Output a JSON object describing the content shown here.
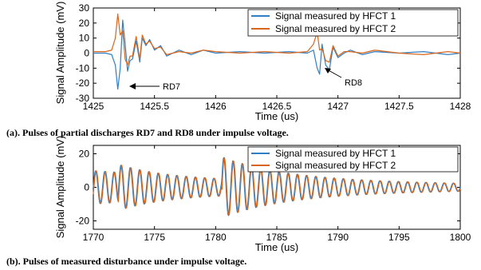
{
  "colors": {
    "series1": "#2f7fc4",
    "series2": "#d9651a"
  },
  "chart_data": [
    {
      "type": "line",
      "xlabel": "Time (us)",
      "ylabel": "Signal Amplitude (mV)",
      "xlim": [
        1425,
        1428
      ],
      "ylim": [
        -30,
        30
      ],
      "xticks": [
        "1425",
        "1425.5",
        "1426",
        "1426.5",
        "1427",
        "1427.5",
        "1428"
      ],
      "yticks": [
        "30",
        "20",
        "10",
        "0",
        "-10",
        "-20",
        "-30"
      ],
      "legend": [
        "Signal measured by HFCT 1",
        "Signal measured by HFCT 2"
      ],
      "legend_position": "top-right",
      "annotations": [
        {
          "text": "RD7",
          "x": 1425.22,
          "y": -24
        },
        {
          "text": "RD8",
          "x": 1426.85,
          "y": -14
        }
      ],
      "series": [
        {
          "name": "Signal measured by HFCT 1",
          "x": [
            1425,
            1425.1,
            1425.15,
            1425.18,
            1425.2,
            1425.22,
            1425.24,
            1425.26,
            1425.28,
            1425.3,
            1425.32,
            1425.35,
            1425.38,
            1425.4,
            1425.43,
            1425.46,
            1425.5,
            1425.55,
            1425.6,
            1425.7,
            1425.8,
            1425.9,
            1426,
            1426.2,
            1426.4,
            1426.6,
            1426.75,
            1426.8,
            1426.83,
            1426.85,
            1426.87,
            1426.9,
            1426.93,
            1426.96,
            1427,
            1427.05,
            1427.1,
            1427.2,
            1427.3,
            1427.5,
            1427.7,
            1427.9,
            1428
          ],
          "y": [
            0,
            0,
            -1,
            -8,
            -24,
            -10,
            22,
            6,
            -12,
            -5,
            -4,
            8,
            -6,
            10,
            5,
            9,
            2,
            5,
            -2,
            2,
            -1,
            2,
            0,
            1,
            0,
            1,
            0,
            2,
            -10,
            -14,
            6,
            -8,
            -11,
            4,
            -3,
            0,
            2,
            -1,
            1,
            0,
            1,
            -1,
            0
          ]
        },
        {
          "name": "Signal measured by HFCT 2",
          "x": [
            1425,
            1425.1,
            1425.15,
            1425.18,
            1425.2,
            1425.22,
            1425.24,
            1425.26,
            1425.28,
            1425.3,
            1425.32,
            1425.35,
            1425.38,
            1425.4,
            1425.43,
            1425.46,
            1425.5,
            1425.55,
            1425.6,
            1425.7,
            1425.8,
            1425.9,
            1426,
            1426.2,
            1426.4,
            1426.6,
            1426.75,
            1426.8,
            1426.83,
            1426.85,
            1426.87,
            1426.9,
            1426.93,
            1426.96,
            1427,
            1427.05,
            1427.1,
            1427.2,
            1427.3,
            1427.5,
            1427.7,
            1427.9,
            1428
          ],
          "y": [
            1,
            1,
            2,
            10,
            26,
            12,
            15,
            -4,
            -8,
            -2,
            -2,
            11,
            -4,
            12,
            6,
            8,
            3,
            4,
            -1,
            1,
            0,
            2,
            1,
            0,
            1,
            0,
            1,
            6,
            14,
            2,
            3,
            -5,
            -6,
            5,
            -2,
            1,
            1,
            0,
            2,
            0,
            -1,
            1,
            0
          ]
        }
      ]
    },
    {
      "type": "line",
      "xlabel": "Time (us)",
      "ylabel": "Signal Amplitude (mV)",
      "xlim": [
        1770,
        1800
      ],
      "ylim": [
        -25,
        25
      ],
      "xticks": [
        "1770",
        "1775",
        "1780",
        "1785",
        "1790",
        "1795",
        "1800"
      ],
      "yticks": [
        "20",
        "0",
        "-20"
      ],
      "legend": [
        "Signal measured by HFCT 1",
        "Signal measured by HFCT 2"
      ],
      "legend_position": "top-right",
      "oscillation": {
        "period_us": 0.75,
        "bursts": [
          {
            "onset_us": 1770,
            "peak_mV": 10,
            "decay_us": 20
          },
          {
            "onset_us": 1772,
            "peak_mV": 16,
            "decay_us": 6
          },
          {
            "onset_us": 1780.5,
            "peak_mV": 14,
            "decay_us": 5
          }
        ],
        "series2_phase_shift_us": 0.05
      },
      "series": [
        {
          "name": "Signal measured by HFCT 1"
        },
        {
          "name": "Signal measured by HFCT 2"
        }
      ]
    }
  ],
  "captions": {
    "a": "(a). Pulses of partial discharges RD7 and RD8 under impulse voltage.",
    "b": "(b). Pulses of measured disturbance under impulse voltage."
  }
}
